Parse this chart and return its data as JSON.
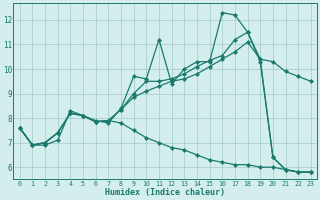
{
  "xlabel": "Humidex (Indice chaleur)",
  "bg_color": "#d4eeee",
  "line_color": "#1a7a6e",
  "grid_color": "#aacece",
  "xlim": [
    -0.5,
    23.5
  ],
  "ylim": [
    5.5,
    12.7
  ],
  "yticks": [
    6,
    7,
    8,
    9,
    10,
    11,
    12
  ],
  "xticks": [
    0,
    1,
    2,
    3,
    4,
    5,
    6,
    7,
    8,
    9,
    10,
    11,
    12,
    13,
    14,
    15,
    16,
    17,
    18,
    19,
    20,
    21,
    22,
    23
  ],
  "series": [
    {
      "x": [
        0,
        1,
        2,
        3,
        4,
        5,
        6,
        7,
        8,
        9,
        10,
        11,
        12,
        13,
        14,
        15,
        16,
        17,
        18,
        19,
        20,
        21,
        22,
        23
      ],
      "y": [
        7.6,
        6.9,
        6.9,
        7.1,
        8.3,
        8.1,
        7.9,
        7.8,
        8.4,
        9.7,
        9.6,
        11.2,
        9.4,
        10.0,
        10.3,
        10.3,
        12.3,
        12.2,
        11.5,
        10.4,
        6.4,
        5.9,
        5.8,
        5.8
      ]
    },
    {
      "x": [
        0,
        1,
        2,
        3,
        4,
        5,
        6,
        7,
        8,
        9,
        10,
        11,
        12,
        13,
        14,
        15,
        16,
        17,
        18,
        19,
        20,
        21,
        22,
        23
      ],
      "y": [
        7.6,
        6.9,
        7.0,
        7.4,
        8.2,
        8.1,
        7.85,
        7.9,
        8.35,
        9.0,
        9.5,
        9.5,
        9.6,
        9.8,
        10.1,
        10.35,
        10.55,
        11.2,
        11.5,
        10.3,
        6.4,
        5.9,
        5.8,
        5.8
      ]
    },
    {
      "x": [
        0,
        1,
        2,
        3,
        4,
        5,
        6,
        7,
        8,
        9,
        10,
        11,
        12,
        13,
        14,
        15,
        16,
        17,
        18,
        19,
        20,
        21,
        22,
        23
      ],
      "y": [
        7.6,
        6.9,
        7.0,
        7.4,
        8.2,
        8.1,
        7.85,
        7.9,
        8.35,
        8.85,
        9.1,
        9.3,
        9.5,
        9.6,
        9.8,
        10.1,
        10.4,
        10.7,
        11.1,
        10.4,
        10.3,
        9.9,
        9.7,
        9.5
      ]
    },
    {
      "x": [
        0,
        1,
        2,
        3,
        4,
        5,
        6,
        7,
        8,
        9,
        10,
        11,
        12,
        13,
        14,
        15,
        16,
        17,
        18,
        19,
        20,
        21,
        22,
        23
      ],
      "y": [
        7.6,
        6.9,
        7.0,
        7.4,
        8.2,
        8.1,
        7.85,
        7.9,
        7.8,
        7.5,
        7.2,
        7.0,
        6.8,
        6.7,
        6.5,
        6.3,
        6.2,
        6.1,
        6.1,
        6.0,
        6.0,
        5.9,
        5.8,
        5.8
      ]
    }
  ]
}
